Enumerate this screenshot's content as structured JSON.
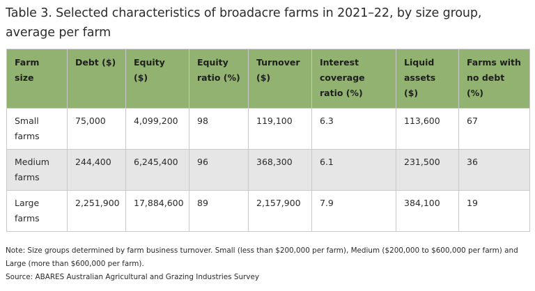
{
  "title": "Table 3. Selected characteristics of broadacre farms in 2021–22, by size group, average per farm",
  "table": {
    "headers": [
      "Farm size",
      "Debt ($)",
      "Equity ($)",
      "Equity ratio (%)",
      "Turnover ($)",
      "Interest coverage ratio (%)",
      "Liquid assets ($)",
      "Farms with no debt (%)"
    ],
    "rows": [
      [
        "Small farms",
        "75,000",
        "4,099,200",
        "98",
        "119,100",
        "6.3",
        "113,600",
        "67"
      ],
      [
        "Medium farms",
        "244,400",
        "6,245,400",
        "96",
        "368,300",
        "6.1",
        "231,500",
        "36"
      ],
      [
        "Large farms",
        "2,251,900",
        "17,884,600",
        "89",
        "2,157,900",
        "7.9",
        "384,100",
        "19"
      ]
    ],
    "header_color": "#91b270",
    "shaded_row_color": "#e6e6e6"
  },
  "notes": {
    "note": "Note: Size groups determined by farm business turnover. Small (less than $200,000 per farm), Medium ($200,000 to $600,000 per farm) and Large (more than $600,000 per farm).",
    "source": "Source: ABARES Australian Agricultural and Grazing Industries Survey"
  }
}
